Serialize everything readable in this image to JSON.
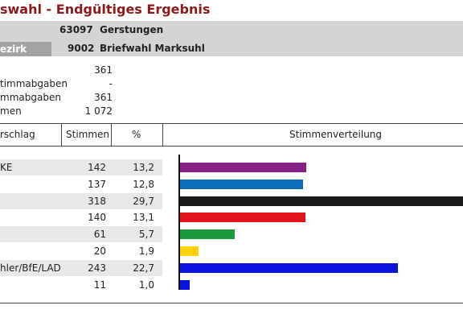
{
  "title": "swahl - Endgültiges Ergebnis",
  "info": {
    "label": "ezirk",
    "rows": [
      {
        "num": "63097",
        "name": "Gerstungen"
      },
      {
        "num": "9002",
        "name": "Briefwahl Marksuhl"
      }
    ]
  },
  "summary": [
    {
      "label": "",
      "value": "361"
    },
    {
      "label": "timmabgaben",
      "value": "-"
    },
    {
      "label": "mmabgaben",
      "value": "361"
    },
    {
      "label": "men",
      "value": "1 072"
    }
  ],
  "table": {
    "headers": {
      "name": "rschlag",
      "votes": "Stimmen",
      "pct": "%",
      "dist": "Stimmenverteilung"
    },
    "rows": [
      {
        "name": "KE",
        "votes": "142",
        "pct": "13,2"
      },
      {
        "name": "",
        "votes": "137",
        "pct": "12,8"
      },
      {
        "name": "",
        "votes": "318",
        "pct": "29,7"
      },
      {
        "name": "",
        "votes": "140",
        "pct": "13,1"
      },
      {
        "name": "",
        "votes": "61",
        "pct": "5,7"
      },
      {
        "name": "",
        "votes": "20",
        "pct": "1,9"
      },
      {
        "name": "hler/BfE/LAD",
        "votes": "243",
        "pct": "22,7"
      },
      {
        "name": "",
        "votes": "11",
        "pct": "1,0"
      }
    ]
  },
  "chart_data": {
    "type": "bar",
    "values": [
      13.2,
      12.8,
      29.7,
      13.1,
      5.7,
      1.9,
      22.7,
      1.0
    ],
    "colors": [
      "#8a1e8a",
      "#0a6fb8",
      "#1a1a1a",
      "#e2141c",
      "#1a9a3a",
      "#ffd000",
      "#0a14e0",
      "#0a14e0"
    ]
  }
}
